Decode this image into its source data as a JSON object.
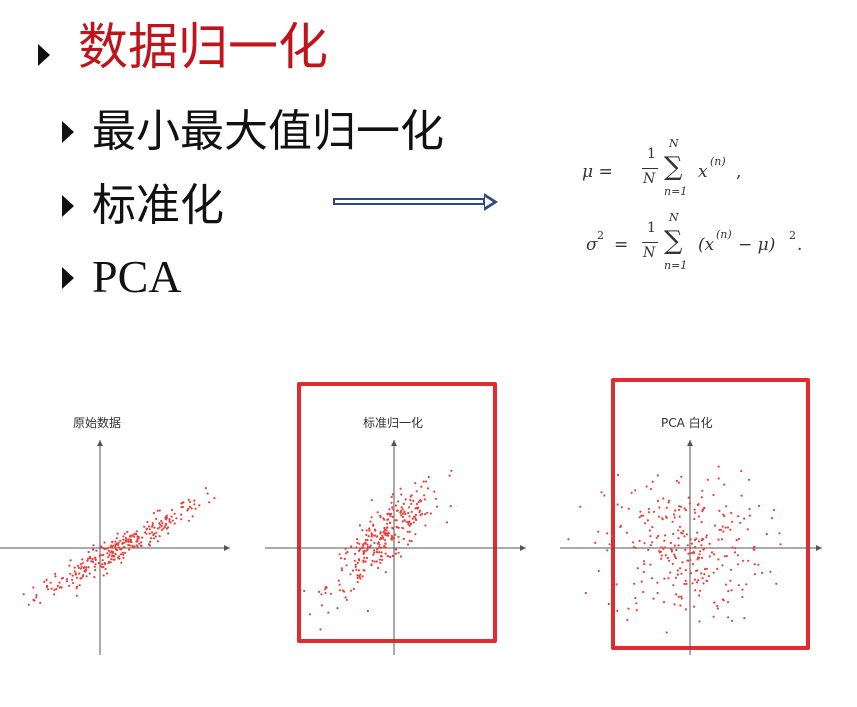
{
  "heading": "数据归一化",
  "items": [
    "最小最大值归一化",
    "标准化",
    "PCA"
  ],
  "formulas": {
    "mu": {
      "lhs": "μ =",
      "num": "1",
      "den": "N",
      "sum_top": "N",
      "sum_bottom": "n=1",
      "term": "x",
      "sup": "(n)",
      "tail": ","
    },
    "sigma": {
      "lhs": "σ",
      "lhs_sup": "2",
      "eq": "=",
      "num": "1",
      "den": "N",
      "sum_top": "N",
      "sum_bottom": "n=1",
      "term": "(x",
      "sup": "(n)",
      "tail": " − μ)",
      "tail_sup": "2",
      "end": "."
    }
  },
  "plots": [
    {
      "title": "原始数据",
      "highlighted": false,
      "spread_x": 1.0,
      "spread_y": 0.35,
      "corr": 0.9,
      "count": 300,
      "color": "#e8403a"
    },
    {
      "title": "标准归一化",
      "highlighted": true,
      "spread_x": 0.85,
      "spread_y": 0.85,
      "corr": 0.85,
      "count": 300,
      "color": "#e8403a"
    },
    {
      "title": "PCA 白化",
      "highlighted": true,
      "spread_x": 1.0,
      "spread_y": 1.0,
      "corr": 0.0,
      "count": 300,
      "color": "#e8403a"
    }
  ],
  "icons": {
    "bullet": "triangle-right-icon",
    "arrow": "double-arrow-right-icon"
  }
}
